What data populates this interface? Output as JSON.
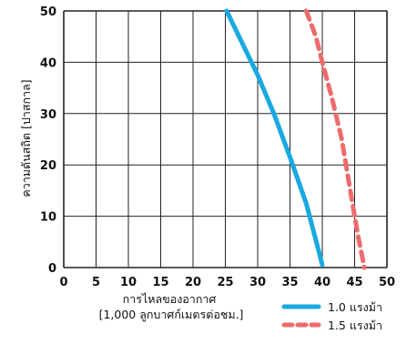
{
  "chart_data": {
    "type": "line",
    "xlabel_lines": [
      "การไหลของอากาศ",
      "[1,000 ลูกบาศก์เมตรต่อชม.]"
    ],
    "ylabel": "ความดันสถิต [ปาสกาล]",
    "xlim": [
      0,
      50
    ],
    "ylim": [
      0,
      50
    ],
    "x_ticks": [
      0,
      5,
      10,
      15,
      20,
      25,
      30,
      35,
      40,
      45,
      50
    ],
    "y_ticks": [
      0,
      10,
      20,
      30,
      40,
      50
    ],
    "grid": true,
    "legend_position": "bottom-right",
    "series": [
      {
        "name": "1.0 แรงม้า",
        "style": "solid",
        "color": "#1aa9e0",
        "points": [
          [
            25.2,
            50
          ],
          [
            27.5,
            44
          ],
          [
            30,
            37.5
          ],
          [
            32.5,
            30
          ],
          [
            35,
            21.5
          ],
          [
            37.5,
            12.5
          ],
          [
            39.5,
            3
          ],
          [
            40,
            0.5
          ]
        ]
      },
      {
        "name": "1.5 แรงม้า",
        "style": "dashed",
        "color": "#ee6b6b",
        "points": [
          [
            37.5,
            50
          ],
          [
            39,
            45
          ],
          [
            40,
            40
          ],
          [
            41.5,
            33
          ],
          [
            43,
            25
          ],
          [
            44.2,
            16
          ],
          [
            45,
            10
          ],
          [
            45.7,
            5
          ],
          [
            46.5,
            0
          ]
        ]
      }
    ]
  }
}
